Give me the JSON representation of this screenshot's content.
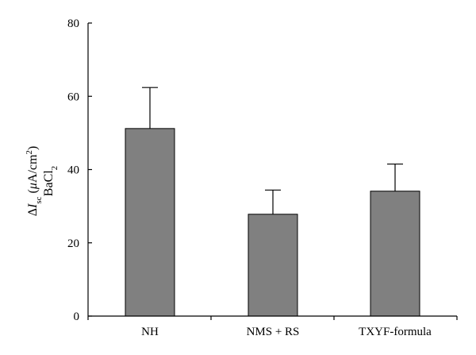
{
  "chart_data": {
    "type": "bar",
    "categories": [
      "NH",
      "NMS + RS",
      "TXYF-formula"
    ],
    "values": [
      51.2,
      27.8,
      34.1
    ],
    "errors": [
      11.2,
      6.6,
      7.4
    ],
    "ylim": [
      0,
      80
    ],
    "yticks": [
      0,
      20,
      40,
      60,
      80
    ],
    "ylabel": {
      "delta": "Δ",
      "I": "I",
      "sub": "sc",
      "unit_open": " (",
      "mu": "μ",
      "unit_rest": "A/cm",
      "sup": "2",
      "close": ")",
      "line2": "BaCl",
      "line2_sub": "2"
    },
    "xlabel": "",
    "title": "",
    "bar_color": "#808080",
    "grid": false,
    "legend": "none"
  }
}
